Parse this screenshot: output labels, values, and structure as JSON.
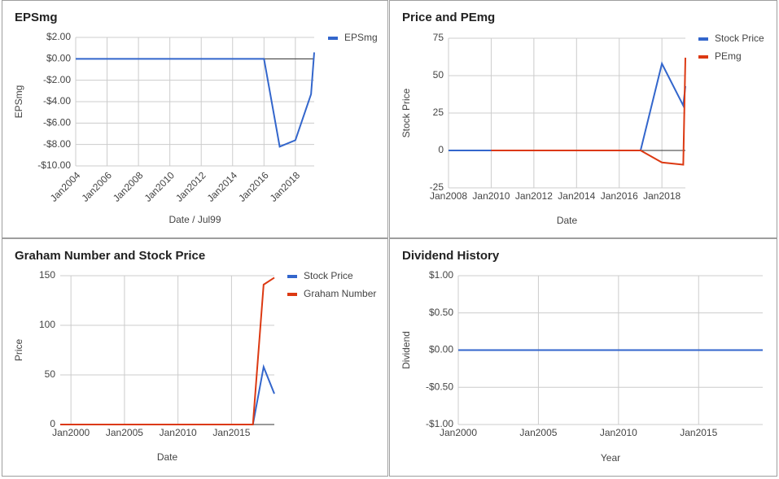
{
  "chart_data": [
    {
      "type": "line",
      "title": "EPSmg",
      "x_label": "Date / Jul99",
      "y_label": "EPSmg",
      "x": [
        2004,
        2005,
        2006,
        2007,
        2008,
        2009,
        2010,
        2011,
        2012,
        2013,
        2014,
        2015,
        2016,
        2017,
        2018,
        2019,
        2019.2
      ],
      "series": [
        {
          "name": "EPSmg",
          "color": "#3366cc",
          "values": [
            0,
            0,
            0,
            0,
            0,
            0,
            0,
            0,
            0,
            0,
            0,
            0,
            0,
            -8.2,
            -7.6,
            -3.3,
            0.6
          ]
        }
      ],
      "xlim": [
        2004,
        2019.2
      ],
      "xticks": [
        {
          "value": 2004,
          "label": "Jan2004"
        },
        {
          "value": 2006,
          "label": "Jan2006"
        },
        {
          "value": 2008,
          "label": "Jan2008"
        },
        {
          "value": 2010,
          "label": "Jan2010"
        },
        {
          "value": 2012,
          "label": "Jan2012"
        },
        {
          "value": 2014,
          "label": "Jan2014"
        },
        {
          "value": 2016,
          "label": "Jan2016"
        },
        {
          "value": 2018,
          "label": "Jan2018"
        }
      ],
      "ylim": [
        -10,
        2
      ],
      "yticks": [
        {
          "value": 2,
          "label": "$2.00"
        },
        {
          "value": 0,
          "label": "$0.00"
        },
        {
          "value": -2,
          "label": "-$2.00"
        },
        {
          "value": -4,
          "label": "-$4.00"
        },
        {
          "value": -6,
          "label": "-$6.00"
        },
        {
          "value": -8,
          "label": "-$8.00"
        },
        {
          "value": -10,
          "label": "-$10.00"
        }
      ],
      "grid": true,
      "legend": "right"
    },
    {
      "type": "line",
      "title": "Price and PEmg",
      "x_label": "Date",
      "y_label": "Stock Price",
      "x": [
        2008,
        2009,
        2010,
        2011,
        2012,
        2013,
        2014,
        2015,
        2016,
        2017,
        2018,
        2019,
        2019.1
      ],
      "series": [
        {
          "name": "Stock Price",
          "color": "#3366cc",
          "values": [
            0,
            0,
            0,
            0,
            0,
            0,
            0,
            0,
            0,
            0,
            58,
            30,
            43
          ]
        },
        {
          "name": "PEmg",
          "color": "#dc3912",
          "values": [
            null,
            null,
            0,
            0,
            0,
            0,
            0,
            0,
            0,
            0,
            -8,
            -9.5,
            62
          ]
        }
      ],
      "xlim": [
        2008,
        2019.1
      ],
      "xticks": [
        {
          "value": 2008,
          "label": "Jan2008"
        },
        {
          "value": 2010,
          "label": "Jan2010"
        },
        {
          "value": 2012,
          "label": "Jan2012"
        },
        {
          "value": 2014,
          "label": "Jan2014"
        },
        {
          "value": 2016,
          "label": "Jan2016"
        },
        {
          "value": 2018,
          "label": "Jan2018"
        }
      ],
      "ylim": [
        -25,
        75
      ],
      "yticks": [
        75,
        50,
        25,
        0,
        -25
      ],
      "grid": true,
      "legend": "right"
    },
    {
      "type": "line",
      "title": "Graham Number and Stock Price",
      "x_label": "Date",
      "y_label": "Price",
      "x": [
        1999,
        2000,
        2001,
        2002,
        2003,
        2004,
        2005,
        2006,
        2007,
        2008,
        2009,
        2010,
        2011,
        2012,
        2013,
        2014,
        2015,
        2016,
        2017,
        2018,
        2019
      ],
      "series": [
        {
          "name": "Stock Price",
          "color": "#3366cc",
          "values": [
            0,
            0,
            0,
            0,
            0,
            0,
            0,
            0,
            0,
            0,
            0,
            0,
            0,
            0,
            0,
            0,
            0,
            0,
            0,
            58,
            31
          ]
        },
        {
          "name": "Graham Number",
          "color": "#dc3912",
          "values": [
            0,
            0,
            0,
            0,
            0,
            0,
            0,
            0,
            0,
            0,
            0,
            0,
            0,
            0,
            0,
            0,
            0,
            0,
            0,
            141,
            148
          ]
        }
      ],
      "xlim": [
        1999,
        2019
      ],
      "xticks": [
        {
          "value": 2000,
          "label": "Jan2000"
        },
        {
          "value": 2005,
          "label": "Jan2005"
        },
        {
          "value": 2010,
          "label": "Jan2010"
        },
        {
          "value": 2015,
          "label": "Jan2015"
        }
      ],
      "ylim": [
        0,
        150
      ],
      "yticks": [
        150,
        100,
        50,
        0
      ],
      "grid": true,
      "legend": "right"
    },
    {
      "type": "line",
      "title": "Dividend History",
      "x_label": "Year",
      "y_label": "Dividend",
      "x": [
        2000,
        2019
      ],
      "values": [
        0,
        0
      ],
      "color": "#3366cc",
      "xlim": [
        2000,
        2019
      ],
      "xticks": [
        {
          "value": 2000,
          "label": "Jan2000"
        },
        {
          "value": 2005,
          "label": "Jan2005"
        },
        {
          "value": 2010,
          "label": "Jan2010"
        },
        {
          "value": 2015,
          "label": "Jan2015"
        }
      ],
      "ylim": [
        -1,
        1
      ],
      "yticks": [
        {
          "value": 1,
          "label": "$1.00"
        },
        {
          "value": 0.5,
          "label": "$0.50"
        },
        {
          "value": 0,
          "label": "$0.00"
        },
        {
          "value": -0.5,
          "label": "-$0.50"
        },
        {
          "value": -1,
          "label": "-$1.00"
        }
      ],
      "grid": true
    }
  ]
}
